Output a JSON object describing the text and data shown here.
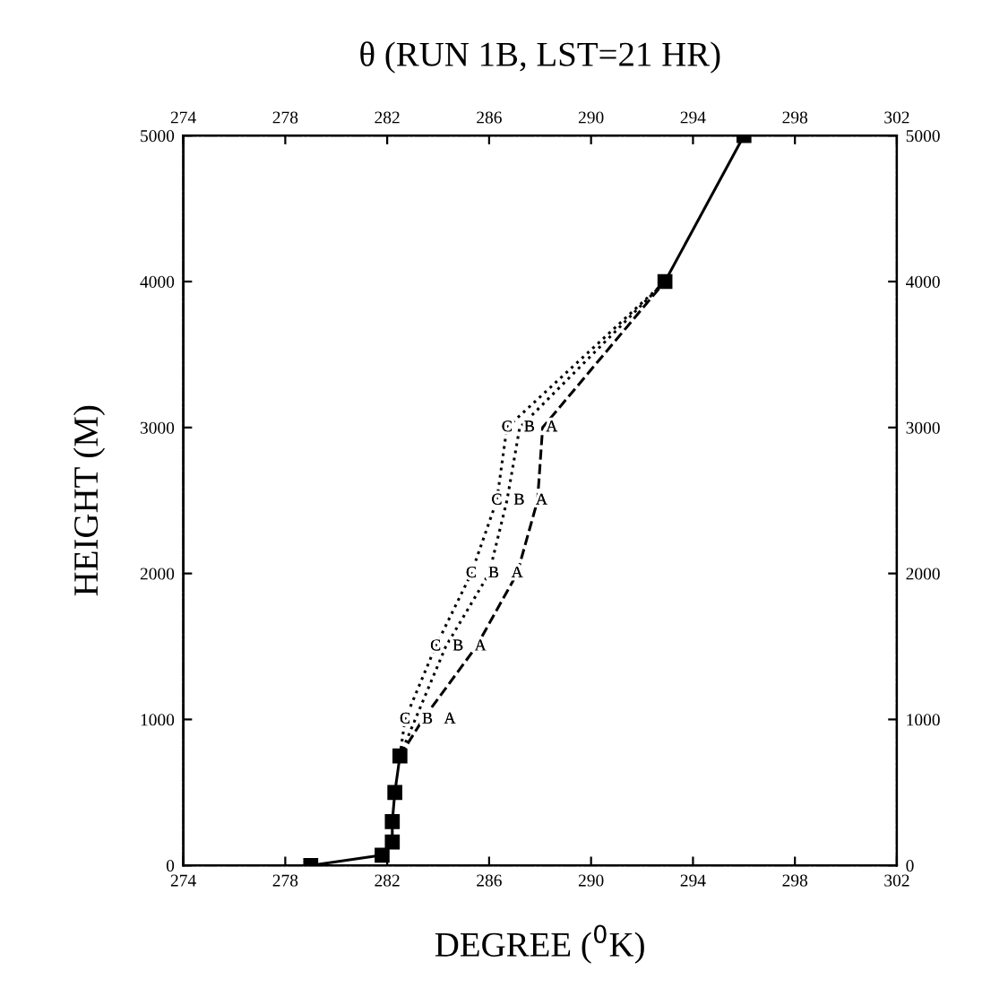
{
  "chart_data": {
    "type": "line",
    "title": "θ (RUN 1B, LST=21 HR)",
    "xlabel": "DEGREE ($^{0}$K)",
    "ylabel": "HEIGHT (M)",
    "xlim": [
      274,
      302
    ],
    "xticks": [
      274,
      278,
      282,
      286,
      290,
      294,
      298,
      302
    ],
    "ylim": [
      0,
      5000
    ],
    "yticks": [
      0,
      1000,
      2000,
      3000,
      4000,
      5000
    ],
    "x2lim": [
      274,
      302
    ],
    "x2ticks": [
      274,
      278,
      282,
      286,
      290,
      294,
      298,
      302
    ],
    "y2lim": [
      0,
      5000
    ],
    "y2ticks": [
      0,
      1000,
      2000,
      3000,
      4000,
      5000
    ],
    "grid": false,
    "legend": false,
    "series": [
      {
        "color": "#000000",
        "line_style": "solid",
        "marker": "square",
        "x": [
          279.0,
          281.8,
          282.2,
          282.2,
          282.3,
          282.5,
          289.0,
          292.9,
          296.0
        ],
        "values": [
          0,
          70,
          160,
          300,
          500,
          750,
          null,
          4000,
          5000
        ]
      },
      {
        "name": "A",
        "color": "#000000",
        "line_style": "dashed",
        "x": [
          282.5,
          283.4,
          285.5,
          287.1,
          287.9,
          288.1,
          292.9
        ],
        "values": [
          750,
          1000,
          1500,
          2000,
          2500,
          3000,
          4000
        ]
      },
      {
        "name": "B",
        "color": "#000000",
        "line_style": "dotted",
        "x": [
          282.5,
          283.1,
          284.3,
          286.0,
          286.7,
          287.2,
          292.9
        ],
        "values": [
          750,
          1000,
          1500,
          2000,
          2500,
          3000,
          4000
        ]
      },
      {
        "name": "C",
        "color": "#000000",
        "line_style": "dotted",
        "x": [
          282.5,
          282.7,
          283.9,
          285.3,
          286.3,
          286.7,
          292.9
        ],
        "values": [
          750,
          1000,
          1500,
          2000,
          2500,
          3000,
          4000
        ]
      }
    ]
  }
}
